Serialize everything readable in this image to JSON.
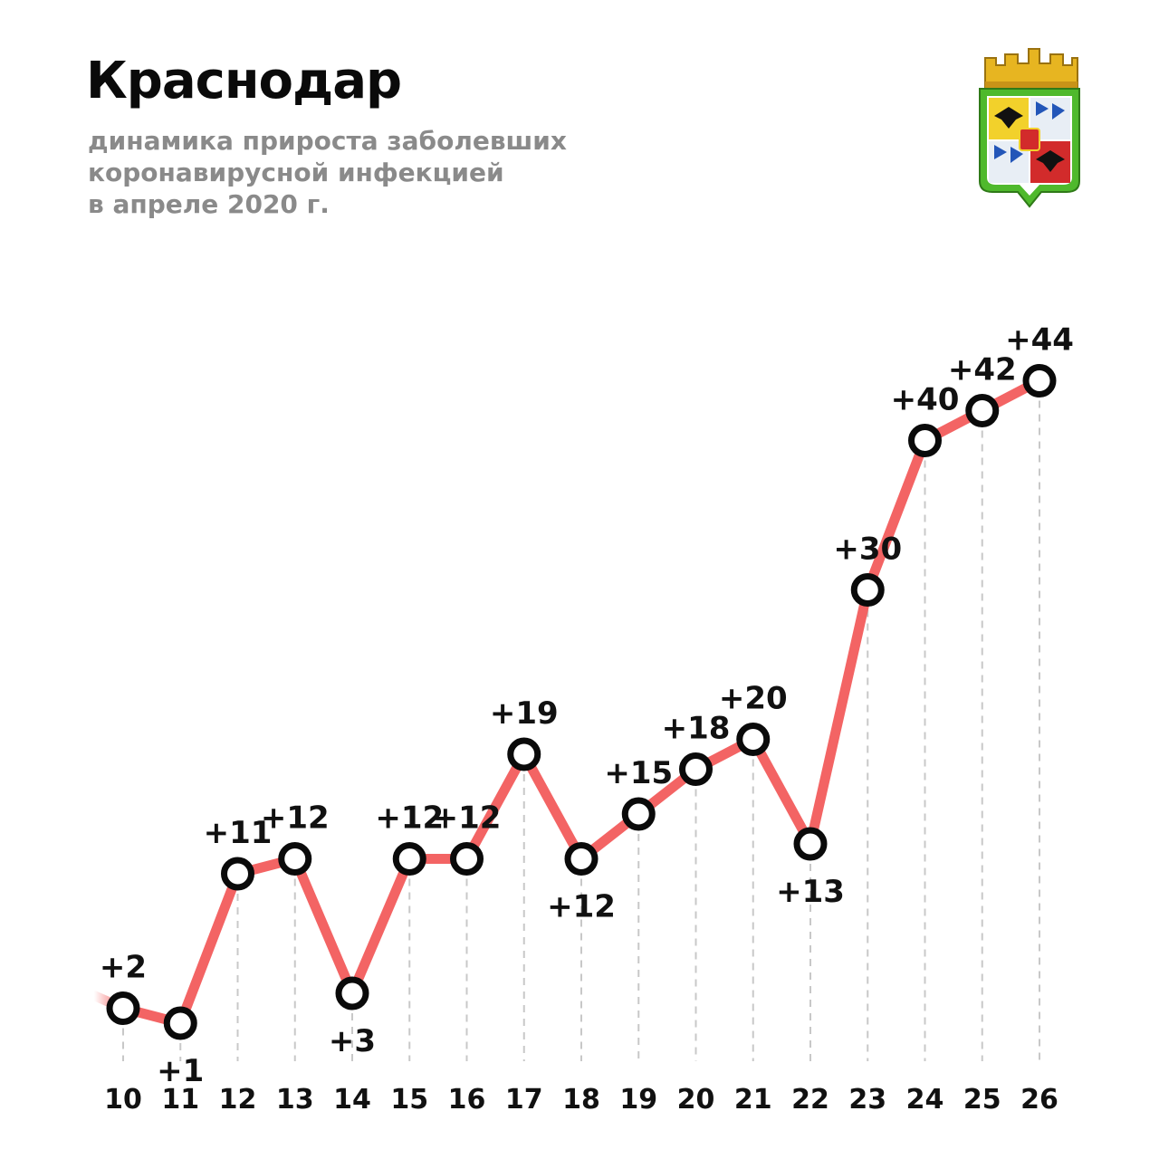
{
  "header": {
    "title": "Краснодар",
    "subtitle_lines": [
      "динамика прироста заболевших",
      "коронавирусной инфекцией",
      "в апреле 2020 г."
    ]
  },
  "emblem": {
    "icon": "krasnodar-coat-of-arms-icon"
  },
  "colors": {
    "line": "#f36464",
    "marker": "#0a0a0a",
    "grid": "#c8c8c8",
    "subtitle": "#8a8a8a"
  },
  "chart_data": {
    "type": "line",
    "title": "Краснодар",
    "subtitle": "динамика прироста заболевших коронавирусной инфекцией в апреле 2020 г.",
    "categories": [
      "10",
      "11",
      "12",
      "13",
      "14",
      "15",
      "16",
      "17",
      "18",
      "19",
      "20",
      "21",
      "22",
      "23",
      "24",
      "25",
      "26"
    ],
    "series": [
      {
        "values": [
          2,
          1,
          11,
          12,
          3,
          12,
          12,
          19,
          12,
          15,
          18,
          20,
          13,
          30,
          40,
          42,
          44
        ],
        "labels": [
          "+2",
          "+1",
          "+11",
          "+12",
          "+3",
          "+12",
          "+12",
          "+19",
          "+12",
          "+15",
          "+18",
          "+20",
          "+13",
          "+30",
          "+40",
          "+42",
          "+44"
        ]
      }
    ],
    "xlabel": "",
    "ylabel": "",
    "ylim": [
      0,
      46
    ],
    "grid": "vertical dashed drop lines",
    "legend": "none"
  }
}
